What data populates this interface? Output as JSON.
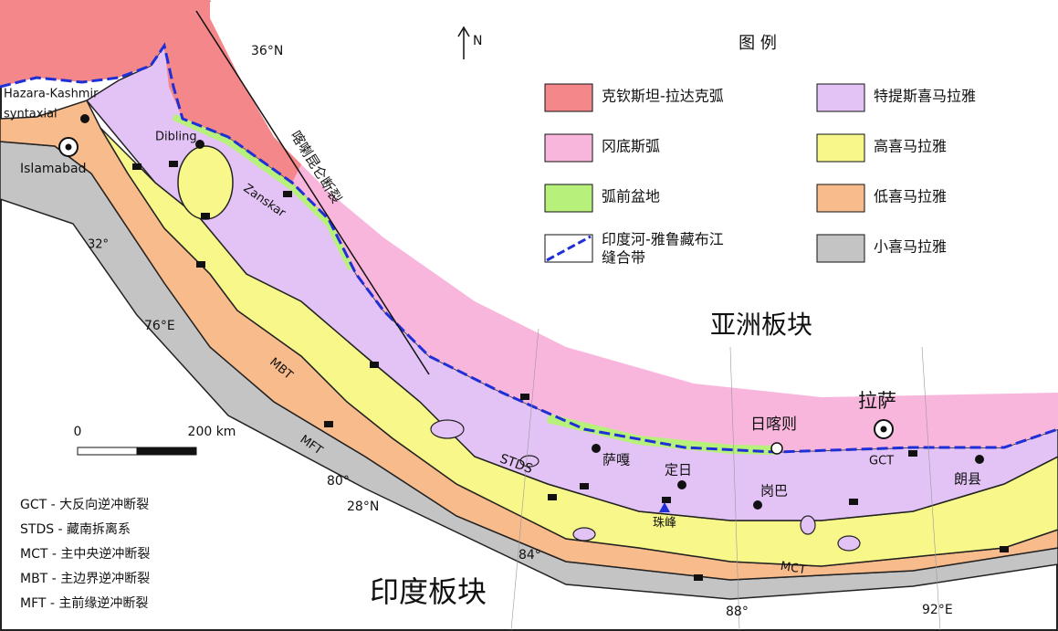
{
  "north": "N",
  "legend": {
    "title": "图 例",
    "items": [
      {
        "label": [
          "克钦斯坦-拉达克弧"
        ],
        "color": "#f4878a"
      },
      {
        "label": [
          "冈底斯弧"
        ],
        "color": "#f9b6dc"
      },
      {
        "label": [
          "弧前盆地"
        ],
        "color": "#b7f07a"
      },
      {
        "label": [
          "印度河-雅鲁藏布江",
          "缝合带"
        ],
        "color": "#1f2fd6"
      },
      {
        "label": [
          "特提斯喜马拉雅"
        ],
        "color": "#e3c3f5"
      },
      {
        "label": [
          "高喜马拉雅"
        ],
        "color": "#f7f78a"
      },
      {
        "label": [
          "低喜马拉雅"
        ],
        "color": "#f7bb8c"
      },
      {
        "label": [
          "小喜马拉雅"
        ],
        "color": "#c4c4c4"
      }
    ]
  },
  "scale": {
    "start": "0",
    "end": "200 km"
  },
  "abbreviations": [
    "GCT - 大反向逆冲断裂",
    "STDS - 藏南拆离系",
    "MCT - 主中央逆冲断裂",
    "MBT - 主边界逆冲断裂",
    "MFT - 主前缘逆冲断裂"
  ],
  "labels": [
    "36°N",
    "喀喇昆仑断裂",
    "Hazara-Kashmir",
    "syntaxial",
    "Islamabad",
    "Dibling",
    "Zanskar",
    "32°",
    "76°E",
    "MBT",
    "MFT",
    "80°",
    "28°N",
    "84°",
    "88°",
    "92°E",
    "STDS",
    "萨嘎",
    "定日",
    "岗巴",
    "珠峰",
    "日喀则",
    "拉萨",
    "GCT",
    "朗县",
    "MCT",
    "亚洲板块",
    "印度板块"
  ]
}
